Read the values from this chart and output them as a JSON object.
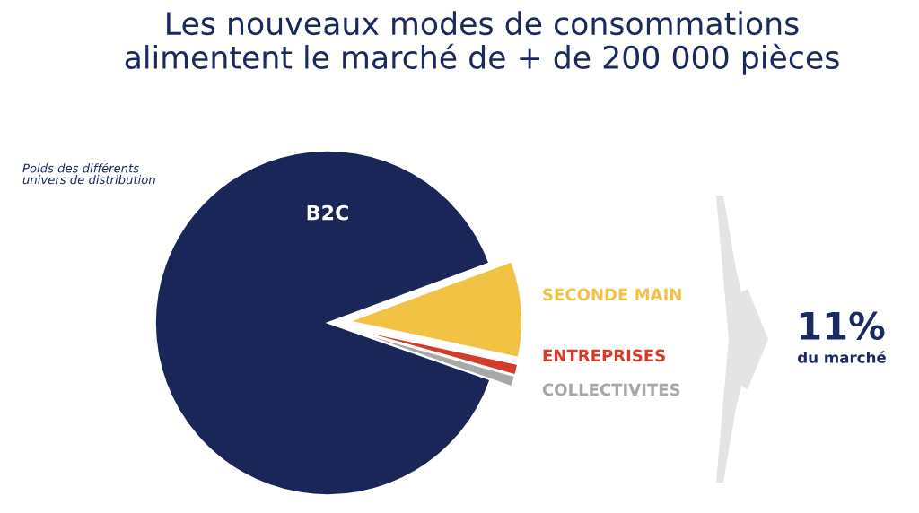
{
  "chart_data": {
    "type": "pie",
    "title": "Les nouveaux modes de consommations\nalimentent le marché de + de 200 000 pièces",
    "subtitle": "Poids des différents\nunivers de distribution",
    "categories": [
      "B2C",
      "SECONDE MAIN",
      "ENTREPRISES",
      "COLLECTIVITES"
    ],
    "values": [
      89,
      9,
      1,
      1
    ],
    "colors": [
      "#1a2558",
      "#f2c245",
      "#d43c2a",
      "#a8a8a8"
    ],
    "annotations": [
      "11%",
      "du marché"
    ]
  }
}
